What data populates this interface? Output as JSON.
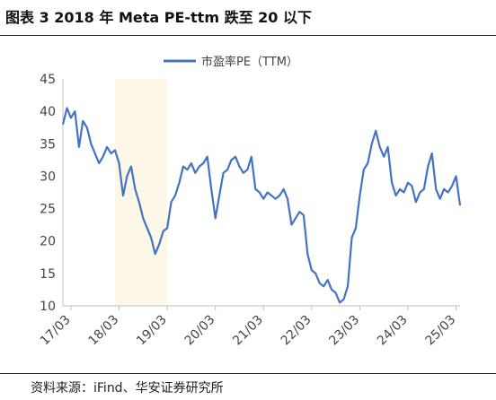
{
  "header": {
    "title": "图表 3 2018 年 Meta PE-ttm 跌至 20 以下"
  },
  "footer": {
    "source": "资料来源：iFind、华安证券研究所"
  },
  "chart_data": {
    "type": "line",
    "title": "图表 3 2018 年 Meta PE-ttm 跌至 20 以下",
    "xlabel": "",
    "ylabel": "",
    "x_tick_labels": [
      "17/03",
      "18/03",
      "19/03",
      "20/03",
      "21/03",
      "22/03",
      "23/03",
      "24/03",
      "25/03"
    ],
    "y_ticks": [
      10,
      15,
      20,
      25,
      30,
      35,
      40,
      45
    ],
    "ylim": [
      10,
      45
    ],
    "xlim": [
      "2017-01",
      "2025-04"
    ],
    "grid": false,
    "legend_position": "top",
    "highlight_band": {
      "from": "2018-02",
      "to": "2019-03",
      "color": "#fdf7e8"
    },
    "series": [
      {
        "name": "市盈率PE（TTM）",
        "color": "#4472c4",
        "x": [
          "2017-01",
          "2017-02",
          "2017-03",
          "2017-04",
          "2017-05",
          "2017-06",
          "2017-07",
          "2017-08",
          "2017-09",
          "2017-10",
          "2017-11",
          "2017-12",
          "2018-01",
          "2018-02",
          "2018-03",
          "2018-04",
          "2018-05",
          "2018-06",
          "2018-07",
          "2018-08",
          "2018-09",
          "2018-10",
          "2018-11",
          "2018-12",
          "2019-01",
          "2019-02",
          "2019-03",
          "2019-04",
          "2019-05",
          "2019-06",
          "2019-07",
          "2019-08",
          "2019-09",
          "2019-10",
          "2019-11",
          "2019-12",
          "2020-01",
          "2020-02",
          "2020-03",
          "2020-04",
          "2020-05",
          "2020-06",
          "2020-07",
          "2020-08",
          "2020-09",
          "2020-10",
          "2020-11",
          "2020-12",
          "2021-01",
          "2021-02",
          "2021-03",
          "2021-04",
          "2021-05",
          "2021-06",
          "2021-07",
          "2021-08",
          "2021-09",
          "2021-10",
          "2021-11",
          "2021-12",
          "2022-01",
          "2022-02",
          "2022-03",
          "2022-04",
          "2022-05",
          "2022-06",
          "2022-07",
          "2022-08",
          "2022-09",
          "2022-10",
          "2022-11",
          "2022-12",
          "2023-01",
          "2023-02",
          "2023-03",
          "2023-04",
          "2023-05",
          "2023-06",
          "2023-07",
          "2023-08",
          "2023-09",
          "2023-10",
          "2023-11",
          "2023-12",
          "2024-01",
          "2024-02",
          "2024-03",
          "2024-04",
          "2024-05",
          "2024-06",
          "2024-07",
          "2024-08",
          "2024-09",
          "2024-10",
          "2024-11",
          "2024-12",
          "2025-01",
          "2025-02",
          "2025-03",
          "2025-04"
        ],
        "values": [
          38,
          40.5,
          39,
          40,
          34.5,
          38.5,
          37.5,
          35,
          33.5,
          32,
          33,
          34.5,
          33.5,
          34,
          32,
          27,
          30,
          31.5,
          28,
          26,
          23.5,
          22,
          20.5,
          18,
          19.5,
          21.5,
          22,
          26,
          27,
          29,
          31.5,
          31,
          32,
          30.5,
          31.5,
          32,
          33,
          28,
          23.5,
          27,
          30.5,
          31,
          32.5,
          33,
          31.5,
          30.5,
          31,
          33,
          28,
          27.5,
          26.5,
          27.5,
          27,
          26.5,
          27,
          28,
          26.5,
          22.5,
          23.5,
          24.5,
          24,
          18,
          15.5,
          15,
          13.5,
          13,
          14,
          12.5,
          12,
          10.5,
          11,
          13,
          20.5,
          22,
          27,
          31,
          32,
          35,
          37,
          34.5,
          33,
          34.5,
          29,
          27,
          28,
          27.5,
          29,
          28.5,
          26,
          27.5,
          28,
          31.5,
          33.5,
          28,
          26.5,
          28,
          27.5,
          28.5,
          30,
          25.5
        ]
      }
    ]
  }
}
